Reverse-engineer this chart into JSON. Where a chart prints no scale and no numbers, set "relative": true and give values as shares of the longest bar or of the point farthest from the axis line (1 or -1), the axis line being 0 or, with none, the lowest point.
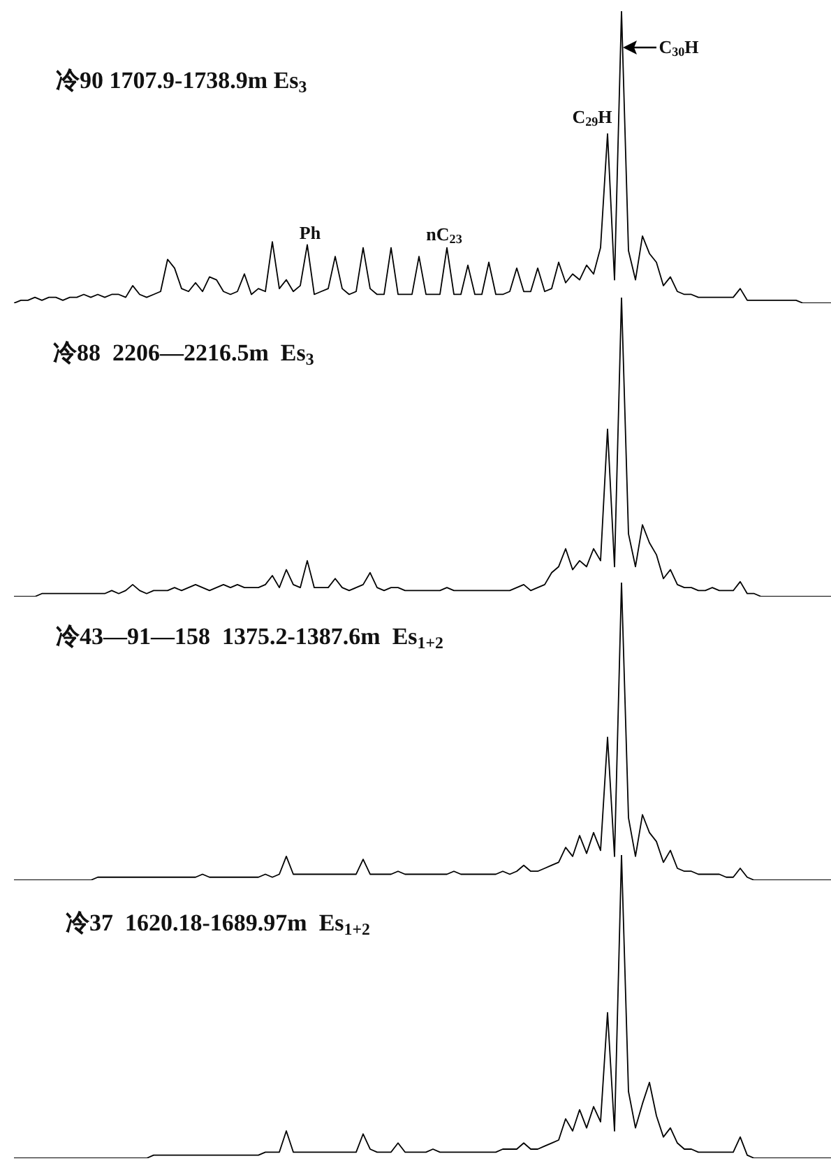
{
  "chart_data": [
    {
      "type": "line",
      "relative": true,
      "title": "冷90 1707.9-1738.9m Es$_{3}$",
      "color": "#000000",
      "marker": "none",
      "annotations": [
        "Ph",
        "nC$_{23}$",
        "C$_{29}$H",
        "C$_{30}$H"
      ],
      "categories": [
        null,
        null,
        null,
        null,
        null,
        null,
        null,
        null,
        null,
        null,
        null,
        null,
        null,
        null,
        null,
        null,
        null,
        null,
        null,
        null,
        null,
        null,
        null,
        null,
        null,
        null,
        null,
        null,
        null,
        null,
        null,
        null,
        null,
        null,
        null,
        null,
        null,
        null,
        null,
        null,
        null,
        null,
        null,
        null,
        null,
        null,
        null,
        null,
        null,
        null,
        null,
        null,
        null,
        null,
        null,
        null,
        null,
        null,
        null,
        null,
        null,
        null,
        null,
        null,
        null,
        null,
        null,
        null,
        null,
        null,
        null,
        null,
        null,
        null,
        null,
        null,
        null,
        null,
        null,
        null,
        null,
        null,
        null,
        null,
        null,
        null,
        null,
        null,
        null,
        null,
        null,
        null,
        null,
        null,
        null,
        null,
        null,
        null,
        null,
        null,
        null,
        null,
        null,
        null,
        null,
        null,
        null,
        null,
        null,
        null,
        null,
        null,
        null,
        null,
        null,
        null,
        null,
        null
      ],
      "values": [
        0,
        0.01,
        0.01,
        0.02,
        0.01,
        0.02,
        0.02,
        0.01,
        0.02,
        0.02,
        0.03,
        0.02,
        0.03,
        0.02,
        0.03,
        0.03,
        0.02,
        0.06,
        0.03,
        0.02,
        0.03,
        0.04,
        0.15,
        0.12,
        0.05,
        0.04,
        0.07,
        0.04,
        0.09,
        0.08,
        0.04,
        0.03,
        0.04,
        0.1,
        0.03,
        0.05,
        0.04,
        0.21,
        0.05,
        0.08,
        0.04,
        0.06,
        0.2,
        0.03,
        0.04,
        0.05,
        0.16,
        0.05,
        0.03,
        0.04,
        0.19,
        0.05,
        0.03,
        0.03,
        0.19,
        0.03,
        0.03,
        0.03,
        0.16,
        0.03,
        0.03,
        0.03,
        0.19,
        0.03,
        0.03,
        0.13,
        0.03,
        0.03,
        0.14,
        0.03,
        0.03,
        0.04,
        0.12,
        0.04,
        0.04,
        0.12,
        0.04,
        0.05,
        0.14,
        0.07,
        0.1,
        0.08,
        0.13,
        0.1,
        0.19,
        0.58,
        0.08,
        1,
        0.18,
        0.08,
        0.23,
        0.17,
        0.14,
        0.06,
        0.09,
        0.04,
        0.03,
        0.03,
        0.02,
        0.02,
        0.02,
        0.02,
        0.02,
        0.02,
        0.05,
        0.01,
        0.01,
        0.01,
        0.01,
        0.01,
        0.01,
        0.01,
        0.01,
        0,
        0,
        0,
        0,
        0
      ]
    },
    {
      "type": "line",
      "relative": true,
      "title": "冷88  2206—2216.5m  Es$_{3}$",
      "color": "#000000",
      "marker": "none",
      "categories": [
        null,
        null,
        null,
        null,
        null,
        null,
        null,
        null,
        null,
        null,
        null,
        null,
        null,
        null,
        null,
        null,
        null,
        null,
        null,
        null,
        null,
        null,
        null,
        null,
        null,
        null,
        null,
        null,
        null,
        null,
        null,
        null,
        null,
        null,
        null,
        null,
        null,
        null,
        null,
        null,
        null,
        null,
        null,
        null,
        null,
        null,
        null,
        null,
        null,
        null,
        null,
        null,
        null,
        null,
        null,
        null,
        null,
        null,
        null,
        null,
        null,
        null,
        null,
        null,
        null,
        null,
        null,
        null,
        null,
        null,
        null,
        null,
        null,
        null,
        null,
        null,
        null,
        null,
        null,
        null,
        null,
        null,
        null,
        null,
        null,
        null,
        null,
        null,
        null,
        null,
        null,
        null,
        null,
        null,
        null,
        null,
        null,
        null,
        null,
        null,
        null,
        null,
        null,
        null,
        null,
        null,
        null,
        null,
        null,
        null,
        null,
        null,
        null,
        null,
        null,
        null,
        null,
        null
      ],
      "values": [
        0,
        0,
        0,
        0,
        0.01,
        0.01,
        0.01,
        0.01,
        0.01,
        0.01,
        0.01,
        0.01,
        0.01,
        0.01,
        0.02,
        0.01,
        0.02,
        0.04,
        0.02,
        0.01,
        0.02,
        0.02,
        0.02,
        0.03,
        0.02,
        0.03,
        0.04,
        0.03,
        0.02,
        0.03,
        0.04,
        0.03,
        0.04,
        0.03,
        0.03,
        0.03,
        0.04,
        0.07,
        0.03,
        0.09,
        0.04,
        0.03,
        0.12,
        0.03,
        0.03,
        0.03,
        0.06,
        0.03,
        0.02,
        0.03,
        0.04,
        0.08,
        0.03,
        0.02,
        0.03,
        0.03,
        0.02,
        0.02,
        0.02,
        0.02,
        0.02,
        0.02,
        0.03,
        0.02,
        0.02,
        0.02,
        0.02,
        0.02,
        0.02,
        0.02,
        0.02,
        0.02,
        0.03,
        0.04,
        0.02,
        0.03,
        0.04,
        0.08,
        0.1,
        0.16,
        0.09,
        0.12,
        0.1,
        0.16,
        0.12,
        0.56,
        0.1,
        1,
        0.21,
        0.1,
        0.24,
        0.18,
        0.14,
        0.06,
        0.09,
        0.04,
        0.03,
        0.03,
        0.02,
        0.02,
        0.03,
        0.02,
        0.02,
        0.02,
        0.05,
        0.01,
        0.01,
        0,
        0,
        0,
        0,
        0,
        0,
        0,
        0,
        0,
        0,
        0
      ]
    },
    {
      "type": "line",
      "relative": true,
      "title": "冷43—91—158  1375.2-1387.6m  Es$_{1+2}$",
      "color": "#000000",
      "marker": "none",
      "categories": [
        null,
        null,
        null,
        null,
        null,
        null,
        null,
        null,
        null,
        null,
        null,
        null,
        null,
        null,
        null,
        null,
        null,
        null,
        null,
        null,
        null,
        null,
        null,
        null,
        null,
        null,
        null,
        null,
        null,
        null,
        null,
        null,
        null,
        null,
        null,
        null,
        null,
        null,
        null,
        null,
        null,
        null,
        null,
        null,
        null,
        null,
        null,
        null,
        null,
        null,
        null,
        null,
        null,
        null,
        null,
        null,
        null,
        null,
        null,
        null,
        null,
        null,
        null,
        null,
        null,
        null,
        null,
        null,
        null,
        null,
        null,
        null,
        null,
        null,
        null,
        null,
        null,
        null,
        null,
        null,
        null,
        null,
        null,
        null,
        null,
        null,
        null,
        null,
        null,
        null,
        null,
        null,
        null,
        null,
        null,
        null,
        null,
        null,
        null,
        null,
        null,
        null,
        null,
        null,
        null,
        null,
        null,
        null,
        null,
        null,
        null,
        null,
        null,
        null,
        null,
        null,
        null,
        null
      ],
      "values": [
        0,
        0,
        0,
        0,
        0,
        0,
        0,
        0,
        0,
        0,
        0,
        0,
        0.01,
        0.01,
        0.01,
        0.01,
        0.01,
        0.01,
        0.01,
        0.01,
        0.01,
        0.01,
        0.01,
        0.01,
        0.01,
        0.01,
        0.01,
        0.02,
        0.01,
        0.01,
        0.01,
        0.01,
        0.01,
        0.01,
        0.01,
        0.01,
        0.02,
        0.01,
        0.02,
        0.08,
        0.02,
        0.02,
        0.02,
        0.02,
        0.02,
        0.02,
        0.02,
        0.02,
        0.02,
        0.02,
        0.07,
        0.02,
        0.02,
        0.02,
        0.02,
        0.03,
        0.02,
        0.02,
        0.02,
        0.02,
        0.02,
        0.02,
        0.02,
        0.03,
        0.02,
        0.02,
        0.02,
        0.02,
        0.02,
        0.02,
        0.03,
        0.02,
        0.03,
        0.05,
        0.03,
        0.03,
        0.04,
        0.05,
        0.06,
        0.11,
        0.08,
        0.15,
        0.09,
        0.16,
        0.1,
        0.48,
        0.08,
        1,
        0.21,
        0.08,
        0.22,
        0.16,
        0.13,
        0.06,
        0.1,
        0.04,
        0.03,
        0.03,
        0.02,
        0.02,
        0.02,
        0.02,
        0.01,
        0.01,
        0.04,
        0.01,
        0,
        0,
        0,
        0,
        0,
        0,
        0,
        0,
        0,
        0,
        0,
        0
      ]
    },
    {
      "type": "line",
      "relative": true,
      "title": "冷37  1620.18-1689.97m  Es$_{1+2}$",
      "color": "#000000",
      "marker": "none",
      "categories": [
        null,
        null,
        null,
        null,
        null,
        null,
        null,
        null,
        null,
        null,
        null,
        null,
        null,
        null,
        null,
        null,
        null,
        null,
        null,
        null,
        null,
        null,
        null,
        null,
        null,
        null,
        null,
        null,
        null,
        null,
        null,
        null,
        null,
        null,
        null,
        null,
        null,
        null,
        null,
        null,
        null,
        null,
        null,
        null,
        null,
        null,
        null,
        null,
        null,
        null,
        null,
        null,
        null,
        null,
        null,
        null,
        null,
        null,
        null,
        null,
        null,
        null,
        null,
        null,
        null,
        null,
        null,
        null,
        null,
        null,
        null,
        null,
        null,
        null,
        null,
        null,
        null,
        null,
        null,
        null,
        null,
        null,
        null,
        null,
        null,
        null,
        null,
        null,
        null,
        null,
        null,
        null,
        null,
        null,
        null,
        null,
        null,
        null,
        null,
        null,
        null,
        null,
        null,
        null,
        null,
        null,
        null,
        null,
        null,
        null,
        null,
        null,
        null,
        null,
        null,
        null,
        null,
        null
      ],
      "values": [
        0,
        0,
        0,
        0,
        0,
        0,
        0,
        0,
        0,
        0,
        0,
        0,
        0,
        0,
        0,
        0,
        0,
        0,
        0,
        0,
        0.01,
        0.01,
        0.01,
        0.01,
        0.01,
        0.01,
        0.01,
        0.01,
        0.01,
        0.01,
        0.01,
        0.01,
        0.01,
        0.01,
        0.01,
        0.01,
        0.02,
        0.02,
        0.02,
        0.09,
        0.02,
        0.02,
        0.02,
        0.02,
        0.02,
        0.02,
        0.02,
        0.02,
        0.02,
        0.02,
        0.08,
        0.03,
        0.02,
        0.02,
        0.02,
        0.05,
        0.02,
        0.02,
        0.02,
        0.02,
        0.03,
        0.02,
        0.02,
        0.02,
        0.02,
        0.02,
        0.02,
        0.02,
        0.02,
        0.02,
        0.03,
        0.03,
        0.03,
        0.05,
        0.03,
        0.03,
        0.04,
        0.05,
        0.06,
        0.13,
        0.09,
        0.16,
        0.1,
        0.17,
        0.12,
        0.48,
        0.09,
        1,
        0.22,
        0.1,
        0.18,
        0.25,
        0.14,
        0.07,
        0.1,
        0.05,
        0.03,
        0.03,
        0.02,
        0.02,
        0.02,
        0.02,
        0.02,
        0.02,
        0.07,
        0.01,
        0,
        0,
        0,
        0,
        0,
        0,
        0,
        0,
        0,
        0,
        0,
        0
      ]
    }
  ]
}
